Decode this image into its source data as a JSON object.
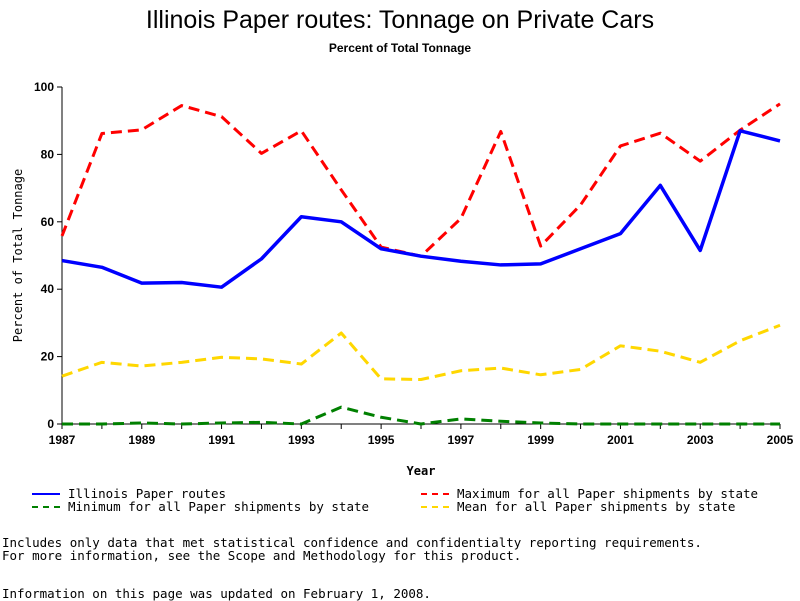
{
  "chart_data": {
    "type": "line",
    "title": "Illinois Paper routes: Tonnage on Private Cars",
    "subtitle": "Percent of Total Tonnage",
    "xlabel": "Year",
    "ylabel": "Percent of Total Tonnage",
    "xlim": [
      1987,
      2005
    ],
    "ylim": [
      0,
      100
    ],
    "x_ticks": [
      "1987",
      "1989",
      "1991",
      "1993",
      "1995",
      "1997",
      "1999",
      "2001",
      "2003",
      "2005"
    ],
    "y_ticks": [
      "0",
      "20",
      "40",
      "60",
      "80",
      "100"
    ],
    "x": [
      1987,
      1988,
      1989,
      1990,
      1991,
      1992,
      1993,
      1994,
      1995,
      1996,
      1997,
      1998,
      1999,
      2000,
      2001,
      2002,
      2003,
      2004,
      2005
    ],
    "series": [
      {
        "name": "Illinois Paper routes",
        "color": "#0000ff",
        "style": "solid",
        "values": [
          48.5,
          46.5,
          41.8,
          42,
          40.6,
          49,
          61.5,
          60,
          52,
          49.8,
          48.3,
          47.2,
          47.5,
          52,
          56.5,
          70.8,
          51.5,
          87,
          84
        ]
      },
      {
        "name": "Maximum for all Paper shipments by state",
        "color": "#ff0000",
        "style": "dashed",
        "values": [
          55.8,
          86.2,
          87.3,
          94.5,
          91.2,
          80.3,
          87,
          69.5,
          52.5,
          49.8,
          61,
          86.8,
          52.8,
          65,
          82.5,
          86.3,
          78,
          87.2,
          95
        ]
      },
      {
        "name": "Minimum for all Paper shipments by state",
        "color": "#008000",
        "style": "dashed",
        "values": [
          0,
          0,
          0.3,
          0,
          0.3,
          0.5,
          0,
          5,
          2,
          0,
          1.5,
          0.8,
          0.3,
          0,
          0,
          0,
          0,
          0,
          0
        ]
      },
      {
        "name": "Mean for all Paper shipments by state",
        "color": "#ffd700",
        "style": "dashed",
        "values": [
          14.2,
          18.3,
          17.2,
          18.3,
          19.8,
          19.3,
          17.8,
          27,
          13.4,
          13.2,
          15.8,
          16.6,
          14.6,
          16.2,
          23.2,
          21.6,
          18.3,
          24.7,
          29.3
        ]
      }
    ],
    "legend_position": "bottom"
  },
  "notes": {
    "line1": "Includes only data that met statistical confidence and confidentialty reporting requirements.",
    "line2": "For more information, see the Scope and Methodology for this product.",
    "updated": "Information on this page was updated on February 1, 2008."
  }
}
